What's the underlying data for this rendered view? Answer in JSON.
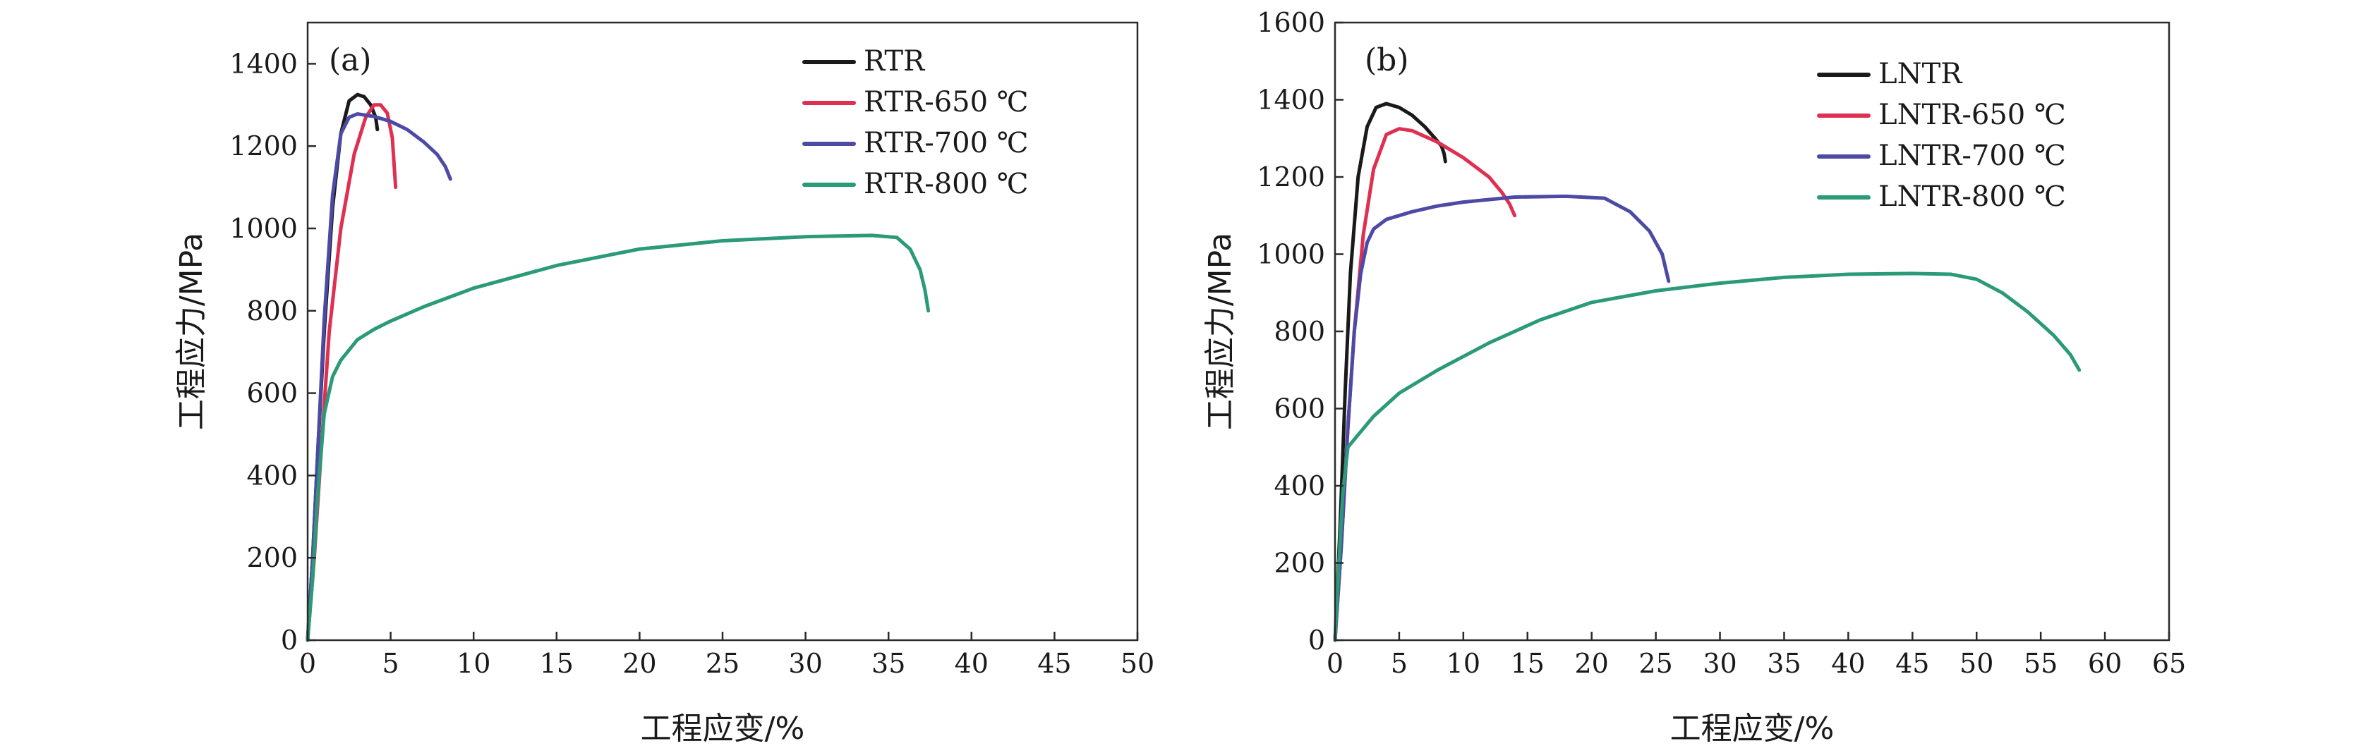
{
  "chart_data": [
    {
      "type": "line",
      "panel_label": "(a)",
      "xlabel": "工程应变/%",
      "ylabel": "工程应力/MPa",
      "xlim": [
        0,
        50
      ],
      "ylim": [
        0,
        1500
      ],
      "xticks": [
        0,
        5,
        10,
        15,
        20,
        25,
        30,
        35,
        40,
        45,
        50
      ],
      "yticks": [
        0,
        200,
        400,
        600,
        800,
        1000,
        1200,
        1400
      ],
      "legend_position": "top-right",
      "series": [
        {
          "name": "RTR",
          "color": "#1a1a1a",
          "x": [
            0,
            0.3,
            0.6,
            1,
            1.5,
            2,
            2.5,
            3,
            3.4,
            3.8,
            4.1,
            4.2
          ],
          "y": [
            0,
            200,
            450,
            750,
            1050,
            1230,
            1310,
            1325,
            1320,
            1300,
            1270,
            1240
          ]
        },
        {
          "name": "RTR-650 ℃",
          "color": "#e03052",
          "x": [
            0,
            0.4,
            0.8,
            1.3,
            2,
            2.8,
            3.5,
            4,
            4.4,
            4.8,
            5.1,
            5.2,
            5.3
          ],
          "y": [
            0,
            200,
            450,
            750,
            1000,
            1180,
            1270,
            1300,
            1300,
            1280,
            1220,
            1160,
            1100
          ]
        },
        {
          "name": "RTR-700 ℃",
          "color": "#4d4aa6",
          "x": [
            0,
            0.3,
            0.6,
            1,
            1.5,
            2,
            2.5,
            3,
            4,
            5,
            6,
            7,
            7.8,
            8.3,
            8.6
          ],
          "y": [
            0,
            200,
            450,
            780,
            1080,
            1230,
            1270,
            1278,
            1272,
            1260,
            1240,
            1210,
            1180,
            1150,
            1120
          ]
        },
        {
          "name": "RTR-800 ℃",
          "color": "#2b9a78",
          "x": [
            0,
            0.3,
            0.6,
            1,
            1.5,
            2,
            3,
            4,
            5,
            7,
            10,
            15,
            20,
            25,
            30,
            34,
            35.5,
            36.3,
            36.9,
            37.2,
            37.4
          ],
          "y": [
            0,
            150,
            350,
            550,
            640,
            680,
            730,
            755,
            775,
            810,
            855,
            910,
            950,
            970,
            980,
            983,
            978,
            950,
            900,
            850,
            800
          ]
        }
      ]
    },
    {
      "type": "line",
      "panel_label": "(b)",
      "xlabel": "工程应变/%",
      "ylabel": "工程应力/MPa",
      "xlim": [
        0,
        65
      ],
      "ylim": [
        0,
        1600
      ],
      "xticks": [
        0,
        5,
        10,
        15,
        20,
        25,
        30,
        35,
        40,
        45,
        50,
        55,
        60,
        65
      ],
      "yticks": [
        0,
        200,
        400,
        600,
        800,
        1000,
        1200,
        1400,
        1600
      ],
      "legend_position": "top-right",
      "series": [
        {
          "name": "LNTR",
          "color": "#1a1a1a",
          "x": [
            0,
            0.4,
            0.8,
            1.2,
            1.8,
            2.5,
            3.2,
            4,
            5,
            6,
            7,
            7.8,
            8.3,
            8.5,
            8.6
          ],
          "y": [
            0,
            300,
            650,
            950,
            1200,
            1330,
            1380,
            1390,
            1380,
            1360,
            1330,
            1300,
            1280,
            1260,
            1240
          ]
        },
        {
          "name": "LNTR-650 ℃",
          "color": "#e03052",
          "x": [
            0,
            0.5,
            1,
            1.5,
            2.2,
            3,
            4,
            5,
            6,
            8,
            10,
            12,
            13,
            13.6,
            14
          ],
          "y": [
            0,
            250,
            550,
            800,
            1050,
            1220,
            1310,
            1325,
            1320,
            1290,
            1250,
            1200,
            1160,
            1130,
            1100
          ]
        },
        {
          "name": "LNTR-700 ℃",
          "color": "#4d4aa6",
          "x": [
            0,
            0.5,
            1,
            1.5,
            2,
            2.5,
            3,
            4,
            6,
            8,
            10,
            14,
            18,
            21,
            23,
            24.5,
            25.5,
            26
          ],
          "y": [
            0,
            250,
            550,
            800,
            950,
            1030,
            1065,
            1090,
            1110,
            1125,
            1135,
            1148,
            1150,
            1145,
            1110,
            1060,
            1000,
            930
          ]
        },
        {
          "name": "LNTR-800 ℃",
          "color": "#2b9a78",
          "x": [
            0,
            0.3,
            0.6,
            1,
            2,
            3,
            5,
            8,
            12,
            16,
            20,
            25,
            30,
            35,
            40,
            45,
            48,
            50,
            52,
            54,
            56,
            57.3,
            58
          ],
          "y": [
            0,
            200,
            380,
            500,
            540,
            580,
            640,
            700,
            770,
            830,
            875,
            905,
            925,
            940,
            948,
            950,
            948,
            935,
            900,
            850,
            790,
            740,
            700
          ]
        }
      ]
    }
  ]
}
